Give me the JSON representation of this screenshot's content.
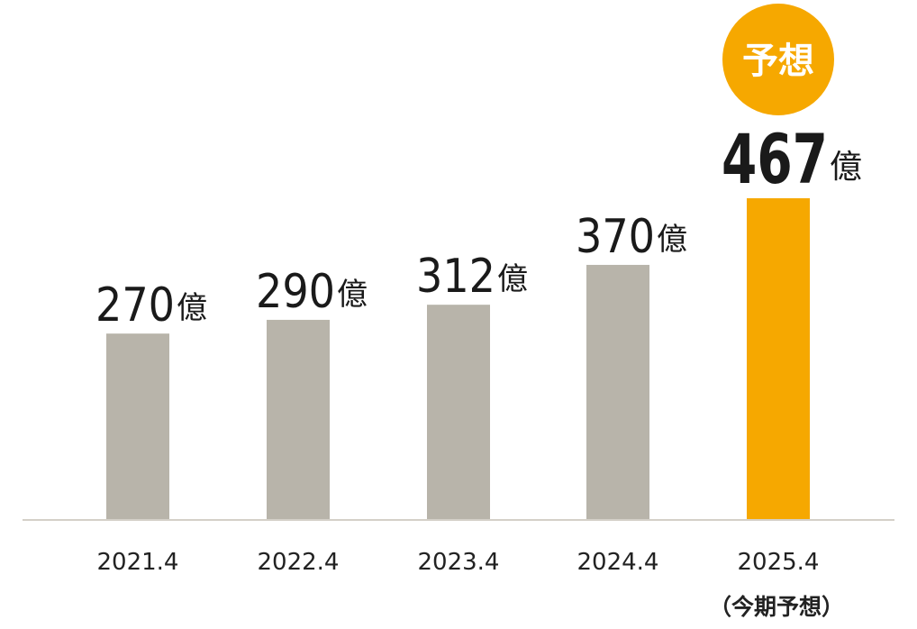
{
  "chart_data": {
    "type": "bar",
    "categories": [
      "2021.4",
      "2022.4",
      "2023.4",
      "2024.4",
      "2025.4"
    ],
    "values": [
      270,
      290,
      312,
      370,
      467
    ],
    "value_labels": [
      "270",
      "290",
      "312",
      "370",
      "467"
    ],
    "unit": "億",
    "highlight_index": 4,
    "highlight_badge": "予想",
    "highlight_sublabel": "（今期予想）",
    "colors": {
      "bar": "#b8b4aa",
      "highlight": "#f6a800",
      "axis": "#d4d0c8"
    },
    "ylim": [
      0,
      467
    ],
    "grid": false,
    "legend": "none",
    "title": "",
    "xlabel": "",
    "ylabel": ""
  }
}
